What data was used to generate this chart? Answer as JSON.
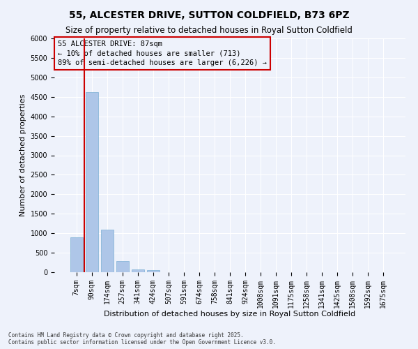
{
  "title": "55, ALCESTER DRIVE, SUTTON COLDFIELD, B73 6PZ",
  "subtitle": "Size of property relative to detached houses in Royal Sutton Coldfield",
  "xlabel": "Distribution of detached houses by size in Royal Sutton Coldfield",
  "ylabel": "Number of detached properties",
  "categories": [
    "7sqm",
    "90sqm",
    "174sqm",
    "257sqm",
    "341sqm",
    "424sqm",
    "507sqm",
    "591sqm",
    "674sqm",
    "758sqm",
    "841sqm",
    "924sqm",
    "1008sqm",
    "1091sqm",
    "1175sqm",
    "1258sqm",
    "1341sqm",
    "1425sqm",
    "1508sqm",
    "1592sqm",
    "1675sqm"
  ],
  "values": [
    900,
    4620,
    1090,
    295,
    80,
    55,
    0,
    0,
    0,
    0,
    0,
    0,
    0,
    0,
    0,
    0,
    0,
    0,
    0,
    0,
    0
  ],
  "bar_color": "#aec6e8",
  "bar_edge_color": "#7bafd4",
  "vline_color": "#cc0000",
  "vline_position": 0.5,
  "annotation_title": "55 ALCESTER DRIVE: 87sqm",
  "annotation_line1": "← 10% of detached houses are smaller (713)",
  "annotation_line2": "89% of semi-detached houses are larger (6,226) →",
  "annotation_box_edgecolor": "#cc0000",
  "ylim": [
    0,
    6000
  ],
  "yticks": [
    0,
    500,
    1000,
    1500,
    2000,
    2500,
    3000,
    3500,
    4000,
    4500,
    5000,
    5500,
    6000
  ],
  "footnote1": "Contains HM Land Registry data © Crown copyright and database right 2025.",
  "footnote2": "Contains public sector information licensed under the Open Government Licence v3.0.",
  "bg_color": "#eef2fb",
  "grid_color": "#ffffff",
  "title_fontsize": 10,
  "subtitle_fontsize": 8.5,
  "annotation_fontsize": 7.5,
  "ylabel_fontsize": 8,
  "xlabel_fontsize": 8,
  "tick_fontsize": 7,
  "footnote_fontsize": 5.5
}
